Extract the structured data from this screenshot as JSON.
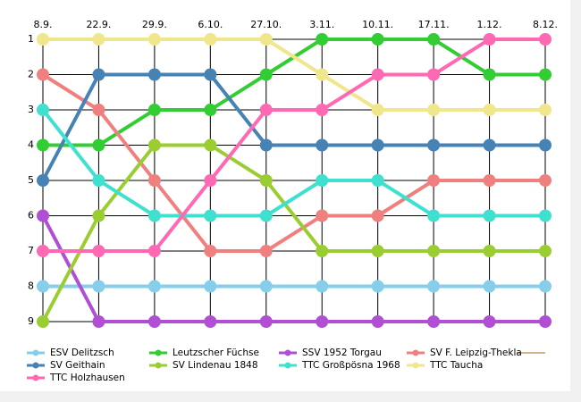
{
  "chart_data": {
    "type": "line",
    "categories": [
      "8.9.",
      "22.9.",
      "29.9.",
      "6.10.",
      "27.10.",
      "3.11.",
      "10.11.",
      "17.11.",
      "1.12.",
      "8.12."
    ],
    "ylim": [
      9,
      1
    ],
    "yticks": [
      1,
      2,
      3,
      4,
      5,
      6,
      7,
      8,
      9
    ],
    "grid": true,
    "series": [
      {
        "name": "ESV Delitzsch",
        "color": "#87ceeb",
        "values": [
          8,
          8,
          8,
          8,
          8,
          8,
          8,
          8,
          8,
          8
        ]
      },
      {
        "name": "Leutzscher Füchse",
        "color": "#32cd32",
        "values": [
          4,
          4,
          3,
          3,
          2,
          1,
          1,
          1,
          2,
          2
        ]
      },
      {
        "name": "SSV 1952 Torgau",
        "color": "#b04fd4",
        "values": [
          6,
          9,
          9,
          9,
          9,
          9,
          9,
          9,
          9,
          9
        ]
      },
      {
        "name": "SV F. Leipzig-Thekla",
        "color": "#f08080",
        "values": [
          2,
          3,
          5,
          7,
          7,
          6,
          6,
          5,
          5,
          5
        ]
      },
      {
        "name": "SV Geithain",
        "color": "#4682b4",
        "values": [
          5,
          2,
          2,
          2,
          4,
          4,
          4,
          4,
          4,
          4
        ]
      },
      {
        "name": "SV Lindenau 1848",
        "color": "#9acd32",
        "values": [
          9,
          6,
          4,
          4,
          5,
          7,
          7,
          7,
          7,
          7
        ]
      },
      {
        "name": "TTC Großpösna 1968",
        "color": "#40e0d0",
        "values": [
          3,
          5,
          6,
          6,
          6,
          5,
          5,
          6,
          6,
          6
        ]
      },
      {
        "name": "TTC Taucha",
        "color": "#f0e68c",
        "values": [
          1,
          1,
          1,
          1,
          1,
          2,
          3,
          3,
          3,
          3
        ]
      },
      {
        "name": "TTC Holzhausen",
        "color": "#ff69b4",
        "values": [
          7,
          7,
          7,
          5,
          3,
          3,
          2,
          2,
          1,
          1
        ]
      }
    ]
  }
}
